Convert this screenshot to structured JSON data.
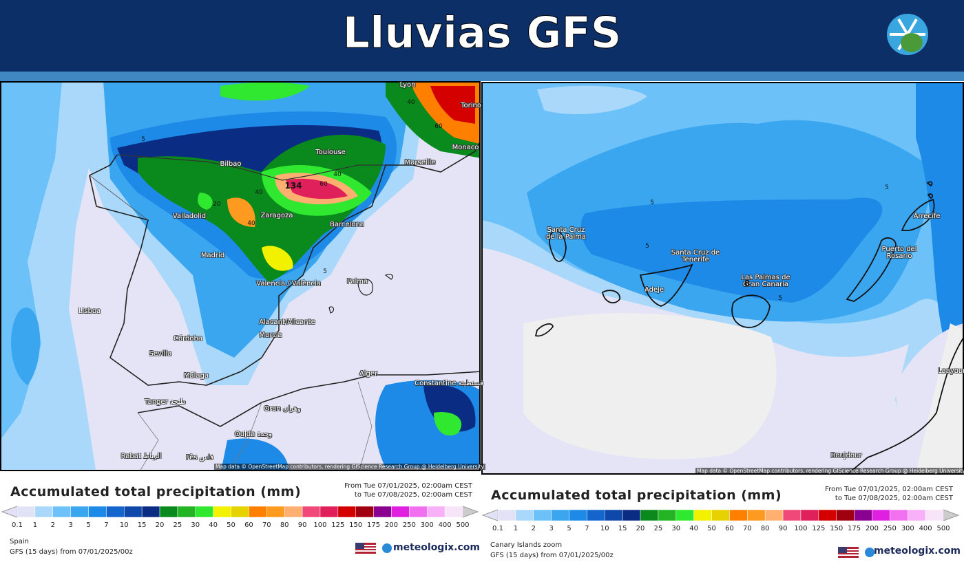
{
  "header": {
    "title": "Lluvias GFS"
  },
  "panels": [
    {
      "map_labels": [
        "Lyon",
        "Torino",
        "Monaco",
        "Toulouse",
        "Marseille",
        "Bilbao",
        "Valladolid",
        "Zaragoza",
        "Barcelona",
        "Madrid",
        "Valencia / València",
        "Palma",
        "Lisboa",
        "Alacant/Alicante",
        "Murcia",
        "Córdoba",
        "Sevilla",
        "Málaga",
        "Alger",
        "Constantine قسنطينة",
        "Tanger طنجة",
        "Oran وهران",
        "Oujda وجدة",
        "Rabat الرباط",
        "Fès فاس"
      ],
      "contour_labels": [
        "5",
        "5",
        "40",
        "20",
        "40",
        "40",
        "60",
        "40",
        "60",
        "134"
      ],
      "attribution": "Map data © OpenStreetMap contributors, rendering GIScience Research Group @ Heidelberg University",
      "legend": {
        "title": "Accumulated total precipitation (mm)",
        "from": "From Tue 07/01/2025, 02:00am CEST",
        "to": "to Tue 07/08/2025, 02:00am CEST"
      },
      "region": "Spain",
      "model": "GFS (15 days) from 07/01/2025/00z",
      "brand": "meteologix.com"
    },
    {
      "map_labels": [
        "Santa Cruz de la Palma",
        "Santa Cruz de Tenerife",
        "Adeje",
        "Las Palmas de Gran Canaria",
        "Arrecife",
        "Puerto del Rosario",
        "Laayoune",
        "Boujdour"
      ],
      "contour_labels": [
        "5",
        "5",
        "5",
        "5",
        "8"
      ],
      "attribution": "Map data © OpenStreetMap contributors, rendering GIScience Research Group @ Heidelberg University",
      "legend": {
        "title": "Accumulated total precipitation (mm)",
        "from": "From Tue 07/01/2025, 02:00am CEST",
        "to": "to Tue 07/08/2025, 02:00am CEST"
      },
      "region": "Canary Islands zoom",
      "model": "GFS (15 days) from 07/01/2025/00z",
      "brand": "meteologix.com"
    }
  ],
  "scale": {
    "values": [
      0.1,
      1,
      2,
      3,
      5,
      7,
      10,
      15,
      20,
      25,
      30,
      40,
      50,
      60,
      70,
      80,
      90,
      100,
      125,
      150,
      175,
      200,
      250,
      300,
      400,
      500
    ],
    "colors": [
      "#e2e2f6",
      "#a9d8fa",
      "#6cc2f8",
      "#3aa6f0",
      "#1e8ae8",
      "#1566cc",
      "#0d48aa",
      "#0a2c82",
      "#0a8a1c",
      "#22b422",
      "#30e830",
      "#f2f200",
      "#e6d200",
      "#ff8000",
      "#ff9a20",
      "#ffb070",
      "#f04878",
      "#e0205a",
      "#d40000",
      "#a00010",
      "#8a0090",
      "#e020e0",
      "#f070f0",
      "#f8b0f8",
      "#f8e4f8",
      "#cccccc"
    ]
  }
}
